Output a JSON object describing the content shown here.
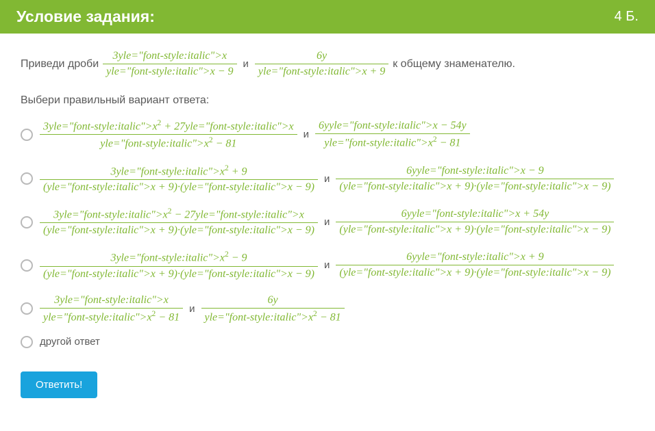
{
  "header": {
    "title": "Условие задания:",
    "points": "4 Б."
  },
  "task": {
    "prefix": "Приведи дроби",
    "frac1": {
      "num": "3x",
      "den": "x − 9"
    },
    "conn1": "и",
    "frac2": {
      "num": "6y",
      "den": "x + 9"
    },
    "suffix": "к общему знаменателю."
  },
  "instruction": "Выбери правильный вариант ответа:",
  "options": [
    {
      "f1": {
        "num": "3x² + 27x",
        "den": "x² − 81"
      },
      "conn": "и",
      "f2": {
        "num": "6yx − 54y",
        "den": "x² − 81"
      }
    },
    {
      "f1": {
        "num": "3x² + 9",
        "den": "(x + 9)·(x − 9)"
      },
      "conn": "и",
      "f2": {
        "num": "6yx − 9",
        "den": "(x + 9)·(x − 9)"
      }
    },
    {
      "f1": {
        "num": "3x² − 27x",
        "den": "(x + 9)·(x − 9)"
      },
      "conn": "и",
      "f2": {
        "num": "6yx + 54y",
        "den": "(x + 9)·(x − 9)"
      }
    },
    {
      "f1": {
        "num": "3x² − 9",
        "den": "(x + 9)·(x − 9)"
      },
      "conn": "и",
      "f2": {
        "num": "6yx + 9",
        "den": "(x + 9)·(x − 9)"
      }
    },
    {
      "f1": {
        "num": "3x",
        "den": "x² − 81"
      },
      "conn": "и",
      "f2": {
        "num": "6y",
        "den": "x² − 81"
      }
    }
  ],
  "other_option": "другой ответ",
  "submit_label": "Ответить!",
  "colors": {
    "header_bg": "#81b833",
    "math_color": "#81b833",
    "text_color": "#595959",
    "button_bg": "#19a3dd",
    "radio_border": "#b9b9b9"
  }
}
